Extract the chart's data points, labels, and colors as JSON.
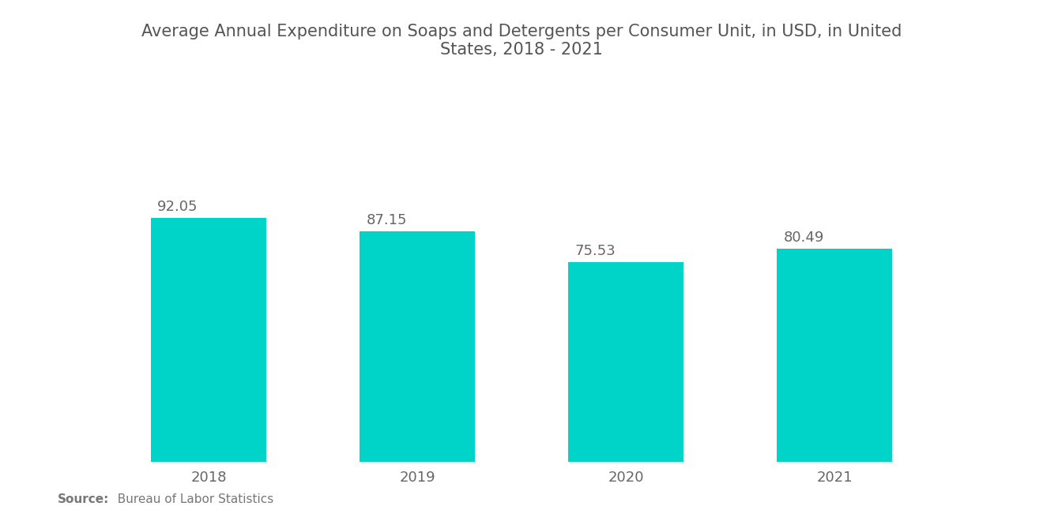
{
  "title_line1": "Average Annual Expenditure on Soaps and Detergents per Consumer Unit, in USD, in United",
  "title_line2": "States, 2018 - 2021",
  "categories": [
    "2018",
    "2019",
    "2020",
    "2021"
  ],
  "values": [
    92.05,
    87.15,
    75.53,
    80.49
  ],
  "bar_color": "#00D4C8",
  "background_color": "#ffffff",
  "title_color": "#555555",
  "label_color": "#666666",
  "source_bold": "Source:",
  "source_text": "  Bureau of Labor Statistics",
  "source_color": "#777777",
  "title_fontsize": 15,
  "label_fontsize": 13,
  "tick_fontsize": 13,
  "source_fontsize": 11,
  "bar_width": 0.55,
  "ylim": [
    0,
    115
  ]
}
